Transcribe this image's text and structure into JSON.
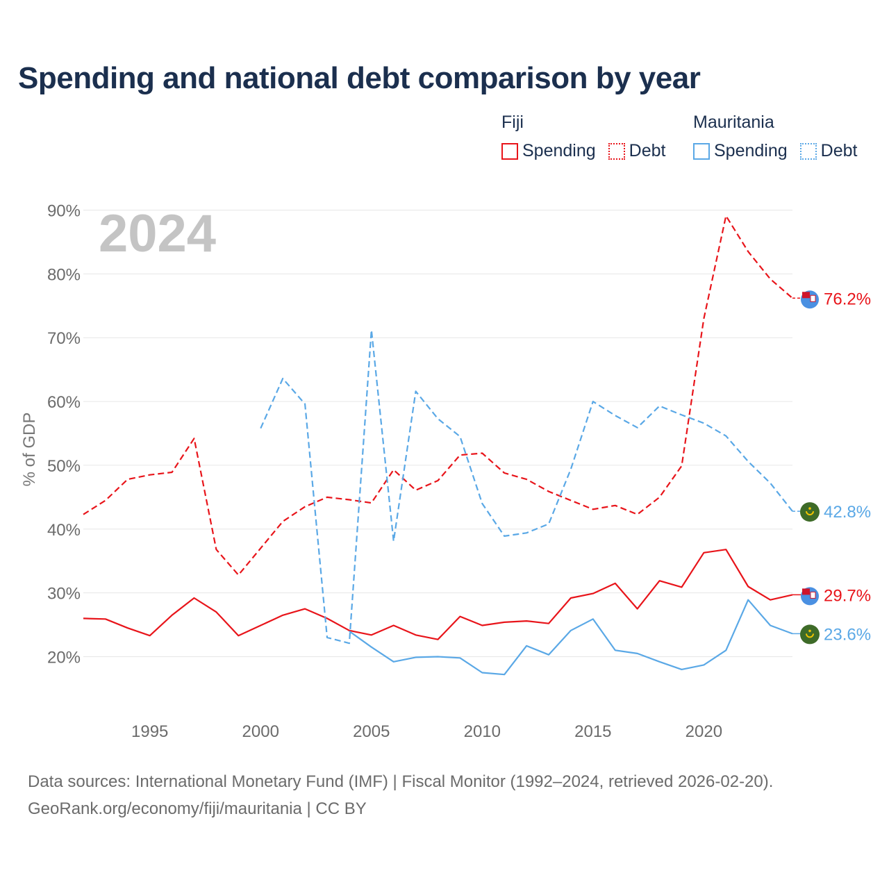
{
  "title": "Spending and national debt comparison by year",
  "legend": {
    "groups": [
      {
        "country": "Fiji",
        "color": "#e8141a",
        "spending_label": "Spending",
        "debt_label": "Debt"
      },
      {
        "country": "Mauritania",
        "color": "#5aa8e6",
        "spending_label": "Spending",
        "debt_label": "Debt"
      }
    ]
  },
  "year_watermark": "2024",
  "footer": {
    "line1": "Data sources: International Monetary Fund (IMF) | Fiscal Monitor (1992–2024, retrieved 2026-02-20).",
    "line2": "GeoRank.org/economy/fiji/mauritania | CC BY"
  },
  "chart_data": {
    "type": "line",
    "title": "Spending and national debt comparison by year",
    "xlabel": "",
    "ylabel": "% of GDP",
    "xlim": [
      1992,
      2024
    ],
    "ylim": [
      11,
      91
    ],
    "x_ticks": [
      1995,
      2000,
      2005,
      2010,
      2015,
      2020
    ],
    "y_ticks": [
      20,
      30,
      40,
      50,
      60,
      70,
      80,
      90
    ],
    "y_tick_labels": [
      "20%",
      "30%",
      "40%",
      "50%",
      "60%",
      "70%",
      "80%",
      "90%"
    ],
    "grid": true,
    "legend_position": "top-right",
    "series": [
      {
        "name": "Fiji Debt",
        "country": "Fiji",
        "color": "#e8141a",
        "dashed": true,
        "start_year": 1992,
        "values": [
          42.3,
          44.5,
          47.8,
          48.5,
          48.9,
          54.2,
          36.8,
          32.8,
          37.0,
          41.2,
          43.5,
          45.0,
          44.6,
          44.1,
          49.3,
          46.1,
          47.6,
          51.6,
          51.9,
          48.8,
          47.8,
          45.9,
          44.5,
          43.1,
          43.7,
          42.3,
          45.0,
          49.9,
          73.0,
          89.1,
          83.5,
          79.2,
          76.2
        ],
        "end_label": "76.2%"
      },
      {
        "name": "Fiji Spending",
        "country": "Fiji",
        "color": "#e8141a",
        "dashed": false,
        "start_year": 1992,
        "values": [
          26.0,
          25.9,
          24.5,
          23.3,
          26.5,
          29.2,
          27.0,
          23.3,
          24.9,
          26.5,
          27.5,
          26.0,
          24.1,
          23.4,
          24.9,
          23.4,
          22.7,
          26.3,
          24.9,
          25.4,
          25.6,
          25.2,
          29.2,
          29.9,
          31.5,
          27.5,
          31.9,
          30.9,
          36.3,
          36.8,
          31.0,
          28.9,
          29.7
        ],
        "end_label": "29.7%"
      },
      {
        "name": "Mauritania Debt",
        "country": "Mauritania",
        "color": "#5aa8e6",
        "dashed": true,
        "start_year": 2000,
        "values": [
          55.8,
          63.6,
          59.6,
          23.0,
          22.1,
          71.2,
          38.1,
          61.6,
          57.3,
          54.5,
          44.0,
          38.9,
          39.4,
          40.8,
          49.4,
          60.0,
          57.8,
          55.9,
          59.3,
          57.9,
          56.6,
          54.6,
          50.6,
          47.2,
          42.8
        ],
        "end_label": "42.8%"
      },
      {
        "name": "Mauritania Spending",
        "country": "Mauritania",
        "color": "#5aa8e6",
        "dashed": false,
        "start_year": 2004,
        "values": [
          24.0,
          21.5,
          19.2,
          19.9,
          20.0,
          19.8,
          17.5,
          17.2,
          21.7,
          20.3,
          24.1,
          25.9,
          21.0,
          20.5,
          19.2,
          18.0,
          18.7,
          21.0,
          28.9,
          24.9,
          23.6
        ],
        "end_label": "23.6%"
      }
    ]
  }
}
